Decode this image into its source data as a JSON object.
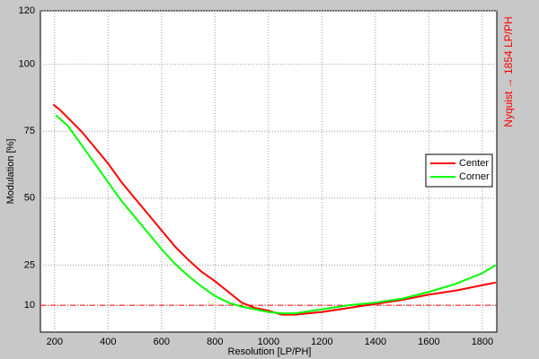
{
  "chart_data": {
    "type": "line",
    "xlabel": "Resolution [LP/PH]",
    "ylabel": "Modulation [%]",
    "annotation": "Nyquist → 1854 LP/PH",
    "series": [
      {
        "name": "Center",
        "color": "#ff0000",
        "x": [
          195,
          220,
          250,
          300,
          350,
          400,
          450,
          500,
          550,
          600,
          650,
          700,
          750,
          800,
          850,
          900,
          950,
          1000,
          1050,
          1100,
          1200,
          1300,
          1400,
          1500,
          1600,
          1700,
          1800,
          1850
        ],
        "values": [
          85,
          83,
          80,
          75,
          69,
          63,
          56,
          50,
          44,
          38,
          32,
          27,
          22.5,
          19,
          15,
          11,
          9,
          8,
          6.5,
          6.5,
          7.5,
          9,
          10.5,
          12,
          14,
          15.5,
          17.5,
          18.5
        ]
      },
      {
        "name": "Corner",
        "color": "#00ff00",
        "x": [
          205,
          250,
          300,
          350,
          400,
          450,
          500,
          550,
          600,
          650,
          700,
          750,
          800,
          850,
          900,
          950,
          1000,
          1050,
          1100,
          1200,
          1300,
          1400,
          1500,
          1600,
          1700,
          1800,
          1850
        ],
        "values": [
          81,
          77,
          70,
          63,
          56,
          49,
          43,
          37,
          31,
          25.5,
          21,
          17,
          13.5,
          11,
          9.5,
          8.5,
          7.5,
          7,
          7,
          8.5,
          10,
          11,
          12.5,
          15,
          18,
          22,
          25
        ]
      }
    ],
    "reference_line": {
      "value": 10,
      "color": "#ff0000"
    },
    "xlim": [
      147,
      1854
    ],
    "xticks": [
      200,
      400,
      600,
      800,
      1000,
      1200,
      1400,
      1600,
      1800
    ],
    "ylim": [
      0,
      120
    ],
    "yticks": [
      10,
      25,
      50,
      75,
      100,
      120
    ],
    "grid": true,
    "legend": "right"
  }
}
